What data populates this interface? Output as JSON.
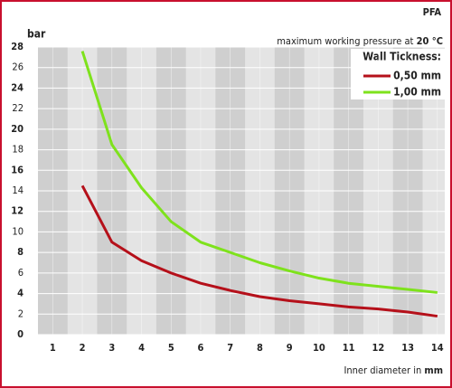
{
  "chart_data": {
    "type": "line",
    "title": "PFA",
    "subtitle": "maximum working pressure at ",
    "subtitle_bold": "20 °C",
    "y_label": "bar",
    "x_label": "Inner diameter in ",
    "x_label_bold": "mm",
    "legend_title": "Wall Tickness:",
    "x": [
      2,
      3,
      4,
      5,
      6,
      7,
      8,
      9,
      10,
      11,
      12,
      13,
      14
    ],
    "series": [
      {
        "name": "0,50 mm",
        "color": "#b5101a",
        "values": [
          14.5,
          9,
          7.2,
          6,
          5,
          4.3,
          3.7,
          3.3,
          3,
          2.7,
          2.5,
          2.2,
          1.8
        ]
      },
      {
        "name": "1,00 mm",
        "color": "#7ee21c",
        "values": [
          27.6,
          18.5,
          14.3,
          11,
          9,
          8,
          7,
          6.2,
          5.5,
          5,
          4.7,
          4.4,
          4.1
        ]
      }
    ],
    "xlim": [
      0.5,
      14.25
    ],
    "xticks": [
      1,
      2,
      3,
      4,
      5,
      6,
      7,
      8,
      9,
      10,
      11,
      12,
      13,
      14
    ],
    "ylim": [
      0,
      28
    ],
    "yticks": [
      0,
      2,
      4,
      6,
      8,
      10,
      12,
      14,
      16,
      18,
      20,
      22,
      24,
      26,
      28
    ],
    "grid": true
  }
}
